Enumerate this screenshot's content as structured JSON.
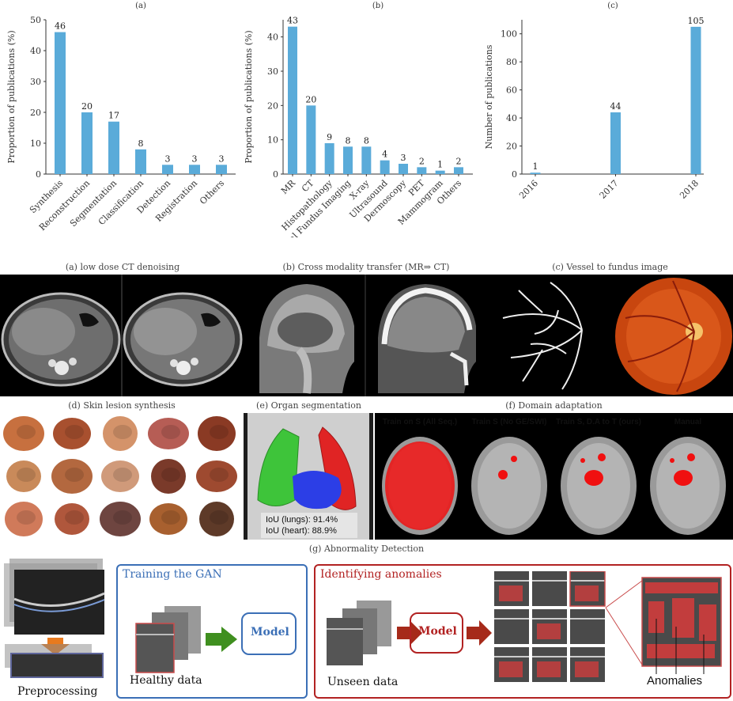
{
  "chart_data": [
    {
      "type": "bar",
      "title": "(a)",
      "ylabel": "Proportion of publications (%)",
      "ylim": [
        0,
        50
      ],
      "yticks": [
        0,
        10,
        20,
        30,
        40,
        50
      ],
      "categories": [
        "Synthesis",
        "Reconstruction",
        "Segmentation",
        "Classification",
        "Detection",
        "Registration",
        "Others"
      ],
      "values": [
        46,
        20,
        17,
        8,
        3,
        3,
        3
      ],
      "value_labels": [
        "46",
        "20",
        "17",
        "8",
        "3",
        "3",
        "3"
      ],
      "color": "#5aabd9"
    },
    {
      "type": "bar",
      "title": "(b)",
      "ylabel": "Proportion of publications (%)",
      "ylim": [
        0,
        45
      ],
      "yticks": [
        0,
        10,
        20,
        30,
        40
      ],
      "categories": [
        "MR",
        "CT",
        "Histopathology",
        "Retinal Fundus Imaging",
        "X-ray",
        "Ultrasound",
        "Dermoscopy",
        "PET",
        "Mammogram",
        "Others"
      ],
      "values": [
        43,
        20,
        9,
        8,
        8,
        4,
        3,
        2,
        1,
        2
      ],
      "value_labels": [
        "43",
        "20",
        "9",
        "8",
        "8",
        "4",
        "3",
        "2",
        "1",
        "2"
      ],
      "color": "#5aabd9"
    },
    {
      "type": "bar",
      "title": "(c)",
      "ylabel": "Number of publications",
      "ylim": [
        0,
        110
      ],
      "yticks": [
        0,
        20,
        40,
        60,
        80,
        100
      ],
      "categories": [
        "2016",
        "2017",
        "2018"
      ],
      "values": [
        1,
        44,
        105
      ],
      "value_labels": [
        "1",
        "44",
        "105"
      ],
      "color": "#5aabd9"
    }
  ],
  "panels": {
    "a": "(a) low dose CT denoising",
    "b": "(b) Cross modality transfer (MR⇒ CT)",
    "c": "(c) Vessel to fundus image",
    "d": "(d) Skin lesion synthesis",
    "e": "(e) Organ segmentation",
    "f": "(f) Domain adaptation",
    "g": "(g) Abnormality Detection"
  },
  "organ": {
    "iou_lungs": "IoU (lungs): 91.4%",
    "iou_heart": "IoU (heart): 88.9%"
  },
  "domain_adaptation": {
    "labels": [
      "Train on S (All Seq.)",
      "Train S (No GE/SWI)",
      "Train S, D.A to T (ours)",
      "Manual"
    ]
  },
  "abnormality": {
    "preprocessing": "Preprocessing",
    "training_title": "Training the GAN",
    "healthy": "Healthy data",
    "model": "Model",
    "identifying_title": "Identifying anomalies",
    "unseen": "Unseen data",
    "model2": "Model",
    "anomalies": "Anomalies"
  },
  "colors": {
    "bar": "#5aabd9",
    "train_box": "#3b6fb6",
    "identify_box": "#b22222",
    "arrow_green": "#3f8f1f",
    "arrow_red": "#a62a1a",
    "arrow_orange": "#e87a1e"
  }
}
